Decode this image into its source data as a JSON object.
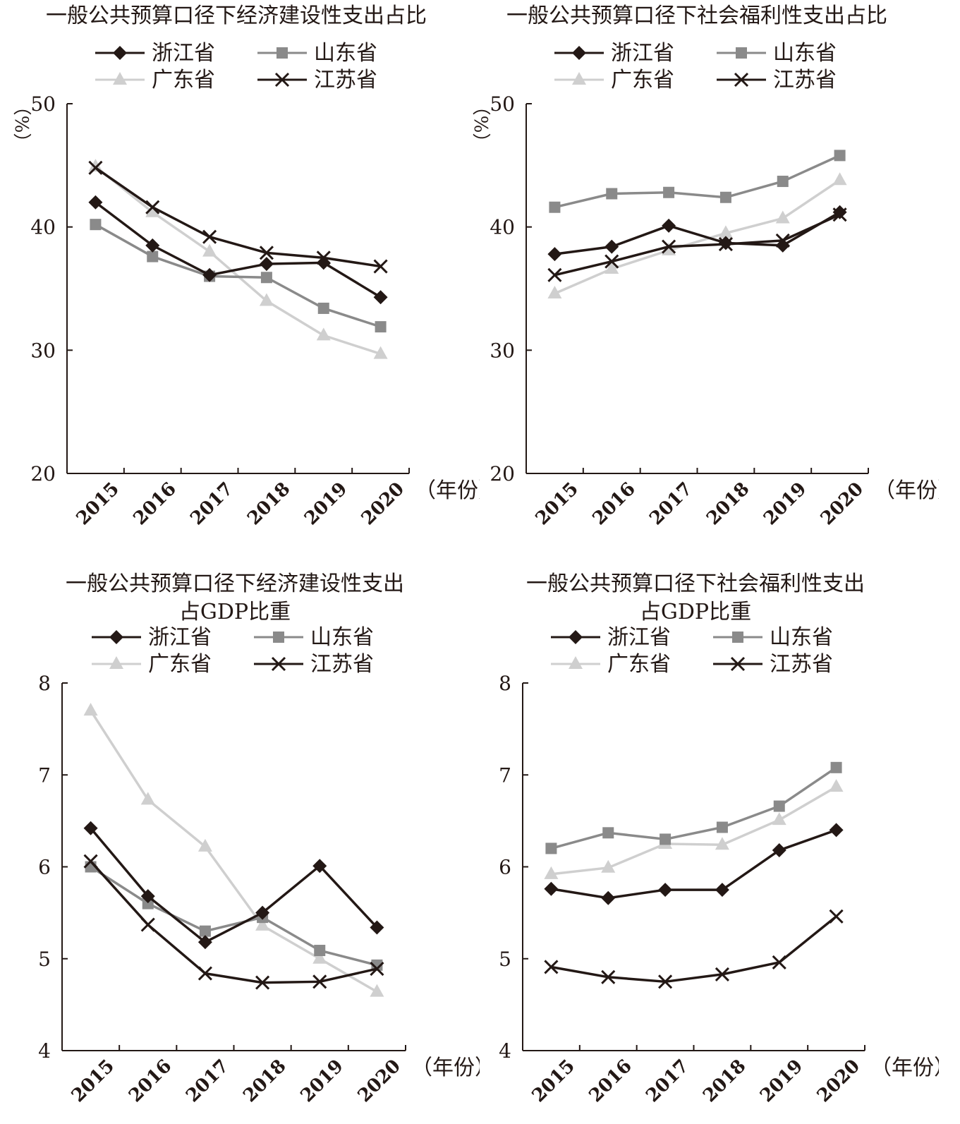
{
  "colors": {
    "浙江省": "#231815",
    "山东省": "#8a8a8a",
    "广东省": "#cfcfcf",
    "江苏省": "#231815"
  },
  "chart_data": [
    {
      "type": "line",
      "title": "一般公共预算口径下经济建设性支出占比",
      "ylabel": "（%）",
      "xunit": "（年份）",
      "x": [
        "2015",
        "2016",
        "2017",
        "2018",
        "2019",
        "2020"
      ],
      "ylim": [
        20,
        50
      ],
      "yticks": [
        "20",
        "30",
        "40",
        "50"
      ],
      "grid": false,
      "legend_position": "top",
      "series": [
        {
          "name": "浙江省",
          "marker": "diamond",
          "values": [
            42.0,
            38.5,
            36.1,
            37.0,
            37.1,
            34.3
          ]
        },
        {
          "name": "山东省",
          "marker": "square",
          "values": [
            40.2,
            37.6,
            36.0,
            35.9,
            33.4,
            31.9
          ]
        },
        {
          "name": "广东省",
          "marker": "triangle",
          "values": [
            44.9,
            41.2,
            38.0,
            34.0,
            31.2,
            29.7
          ]
        },
        {
          "name": "江苏省",
          "marker": "x",
          "values": [
            44.8,
            41.6,
            39.2,
            37.9,
            37.5,
            36.8
          ]
        }
      ]
    },
    {
      "type": "line",
      "title": "一般公共预算口径下社会福利性支出占比",
      "ylabel": "（%）",
      "xunit": "（年份）",
      "x": [
        "2015",
        "2016",
        "2017",
        "2018",
        "2019",
        "2020"
      ],
      "ylim": [
        20,
        50
      ],
      "yticks": [
        "20",
        "30",
        "40",
        "50"
      ],
      "grid": false,
      "legend_position": "top",
      "series": [
        {
          "name": "浙江省",
          "marker": "diamond",
          "values": [
            37.8,
            38.4,
            40.1,
            38.7,
            38.5,
            41.2
          ]
        },
        {
          "name": "山东省",
          "marker": "square",
          "values": [
            41.6,
            42.7,
            42.8,
            42.4,
            43.7,
            45.8
          ]
        },
        {
          "name": "广东省",
          "marker": "triangle",
          "values": [
            34.6,
            36.6,
            38.1,
            39.5,
            40.7,
            43.8
          ]
        },
        {
          "name": "江苏省",
          "marker": "x",
          "values": [
            36.1,
            37.2,
            38.4,
            38.6,
            38.9,
            41.0
          ]
        }
      ]
    },
    {
      "type": "line",
      "title": "一般公共预算口径下经济建设性支出占GDP比重",
      "title_lines": [
        "一般公共预算口径下经济建设性支出",
        "占GDP比重"
      ],
      "xunit": "（年份）",
      "x": [
        "2015",
        "2016",
        "2017",
        "2018",
        "2019",
        "2020"
      ],
      "ylim": [
        4,
        8
      ],
      "yticks": [
        "4",
        "5",
        "6",
        "7",
        "8"
      ],
      "grid": false,
      "legend_position": "top",
      "series": [
        {
          "name": "浙江省",
          "marker": "diamond",
          "values": [
            6.42,
            5.68,
            5.18,
            5.5,
            6.01,
            5.34
          ]
        },
        {
          "name": "山东省",
          "marker": "square",
          "values": [
            6.0,
            5.6,
            5.3,
            5.45,
            5.09,
            4.93
          ]
        },
        {
          "name": "广东省",
          "marker": "triangle",
          "values": [
            7.7,
            6.73,
            6.22,
            5.36,
            5.0,
            4.64
          ]
        },
        {
          "name": "江苏省",
          "marker": "x",
          "values": [
            6.06,
            5.37,
            4.84,
            4.74,
            4.75,
            4.89
          ]
        }
      ]
    },
    {
      "type": "line",
      "title": "一般公共预算口径下社会福利性支出占GDP比重",
      "title_lines": [
        "一般公共预算口径下社会福利性支出",
        "占GDP比重"
      ],
      "xunit": "（年份）",
      "x": [
        "2015",
        "2016",
        "2017",
        "2018",
        "2019",
        "2020"
      ],
      "ylim": [
        4,
        8
      ],
      "yticks": [
        "4",
        "5",
        "6",
        "7",
        "8"
      ],
      "grid": false,
      "legend_position": "top",
      "series": [
        {
          "name": "浙江省",
          "marker": "diamond",
          "values": [
            5.76,
            5.66,
            5.75,
            5.75,
            6.18,
            6.4
          ]
        },
        {
          "name": "山东省",
          "marker": "square",
          "values": [
            6.2,
            6.37,
            6.3,
            6.43,
            6.66,
            7.08
          ]
        },
        {
          "name": "广东省",
          "marker": "triangle",
          "values": [
            5.92,
            5.99,
            6.25,
            6.24,
            6.51,
            6.87
          ]
        },
        {
          "name": "江苏省",
          "marker": "x",
          "values": [
            4.91,
            4.8,
            4.75,
            4.83,
            4.96,
            5.46
          ]
        }
      ]
    }
  ]
}
